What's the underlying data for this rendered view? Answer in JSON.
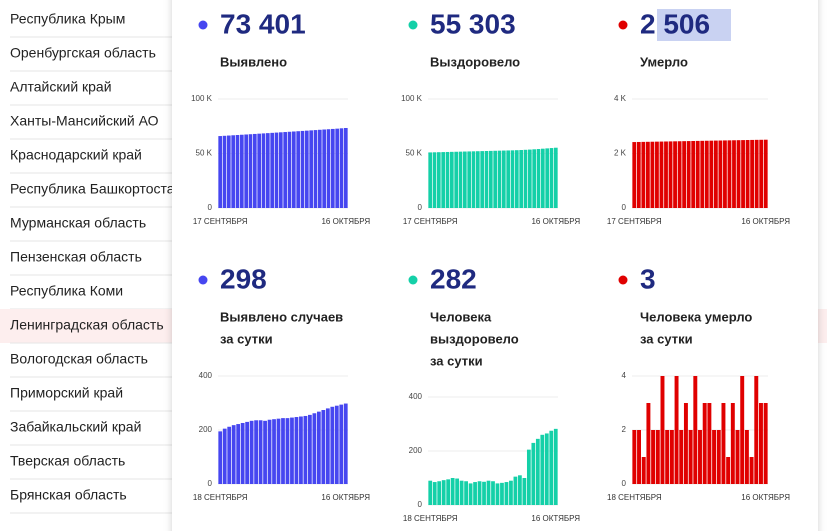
{
  "regions": [
    "Республика Крым",
    "Оренбургская область",
    "Алтайский край",
    "Ханты-Мансийский АО",
    "Краснодарский край",
    "Республика Башкортостан",
    "Мурманская область",
    "Пензенская область",
    "Республика Коми",
    "Ленинградская область",
    "Вологодская область",
    "Приморский край",
    "Забайкальский край",
    "Тверская область",
    "Брянская область"
  ],
  "chart_data": [
    {
      "type": "bar",
      "headline": "73 401",
      "label": [
        "Выявлено"
      ],
      "color": "#4646f0",
      "categories": [
        "17 СЕНТЯБРЯ",
        null,
        null,
        null,
        null,
        null,
        null,
        null,
        null,
        null,
        null,
        null,
        null,
        null,
        null,
        null,
        null,
        null,
        null,
        null,
        null,
        null,
        null,
        null,
        null,
        null,
        null,
        null,
        null,
        "16 ОКТЯБРЯ"
      ],
      "values": [
        66000,
        66240,
        66480,
        66720,
        66960,
        67200,
        67440,
        67690,
        67940,
        68190,
        68440,
        68690,
        68940,
        69190,
        69440,
        69690,
        69940,
        70190,
        70450,
        70710,
        70970,
        71230,
        71490,
        71750,
        72010,
        72270,
        72530,
        72790,
        73110,
        73401
      ],
      "ylim": [
        0,
        100000
      ],
      "yticks": [
        0,
        {
          "value": 50000,
          "label": "50 K"
        },
        {
          "value": 100000,
          "label": "100 K"
        }
      ]
    },
    {
      "type": "bar",
      "headline": "55 303",
      "label": [
        "Выздоровело"
      ],
      "color": "#14d0a8",
      "categories": [
        "17 СЕНТЯБРЯ",
        null,
        null,
        null,
        null,
        null,
        null,
        null,
        null,
        null,
        null,
        null,
        null,
        null,
        null,
        null,
        null,
        null,
        null,
        null,
        null,
        null,
        null,
        null,
        null,
        null,
        null,
        null,
        null,
        "16 ОКТЯБРЯ"
      ],
      "values": [
        51000,
        51100,
        51200,
        51300,
        51400,
        51500,
        51600,
        51700,
        51800,
        51900,
        52000,
        52100,
        52200,
        52300,
        52400,
        52500,
        52600,
        52700,
        52800,
        52900,
        53050,
        53200,
        53400,
        53600,
        53850,
        54100,
        54400,
        54700,
        55000,
        55303
      ],
      "ylim": [
        0,
        100000
      ],
      "yticks": [
        0,
        {
          "value": 50000,
          "label": "50 K"
        },
        {
          "value": 100000,
          "label": "100 K"
        }
      ]
    },
    {
      "type": "bar",
      "headline": "2 506",
      "label": [
        "Умерло"
      ],
      "color": "#e00000",
      "categories": [
        "17 СЕНТЯБРЯ",
        null,
        null,
        null,
        null,
        null,
        null,
        null,
        null,
        null,
        null,
        null,
        null,
        null,
        null,
        null,
        null,
        null,
        null,
        null,
        null,
        null,
        null,
        null,
        null,
        null,
        null,
        null,
        null,
        "16 ОКТЯБРЯ"
      ],
      "values": [
        2420,
        2423,
        2426,
        2429,
        2432,
        2435,
        2438,
        2441,
        2444,
        2447,
        2450,
        2453,
        2456,
        2459,
        2462,
        2465,
        2468,
        2471,
        2474,
        2477,
        2480,
        2483,
        2486,
        2489,
        2492,
        2495,
        2498,
        2501,
        2503,
        2506
      ],
      "ylim": [
        0,
        4000
      ],
      "yticks": [
        0,
        {
          "value": 2000,
          "label": "2 K"
        },
        {
          "value": 4000,
          "label": "4 K"
        }
      ]
    },
    {
      "type": "bar",
      "headline": "298",
      "label": [
        "Выявлено случаев",
        "за сутки"
      ],
      "color": "#4646f0",
      "categories": [
        "18 СЕНТЯБРЯ",
        null,
        null,
        null,
        null,
        null,
        null,
        null,
        null,
        null,
        null,
        null,
        null,
        null,
        null,
        null,
        null,
        null,
        null,
        null,
        null,
        null,
        null,
        null,
        null,
        null,
        null,
        null,
        "16 ОКТЯБРЯ"
      ],
      "values": [
        195,
        205,
        212,
        218,
        222,
        226,
        230,
        234,
        236,
        236,
        234,
        238,
        240,
        242,
        244,
        244,
        246,
        248,
        250,
        252,
        256,
        262,
        268,
        274,
        280,
        286,
        290,
        294,
        298
      ],
      "ylim": [
        0,
        400
      ],
      "yticks": [
        0,
        200,
        400
      ]
    },
    {
      "type": "bar",
      "headline": "282",
      "label": [
        "Человека",
        "выздоровело",
        "за сутки"
      ],
      "color": "#14d0a8",
      "categories": [
        "18 СЕНТЯБРЯ",
        null,
        null,
        null,
        null,
        null,
        null,
        null,
        null,
        null,
        null,
        null,
        null,
        null,
        null,
        null,
        null,
        null,
        null,
        null,
        null,
        null,
        null,
        null,
        null,
        null,
        null,
        null,
        "16 ОКТЯБРЯ"
      ],
      "values": [
        90,
        85,
        88,
        92,
        95,
        100,
        98,
        90,
        88,
        80,
        85,
        88,
        86,
        90,
        88,
        80,
        82,
        85,
        90,
        105,
        110,
        100,
        205,
        230,
        245,
        260,
        265,
        275,
        282
      ],
      "ylim": [
        0,
        400
      ],
      "yticks": [
        0,
        200,
        400
      ]
    },
    {
      "type": "bar",
      "headline": "3",
      "label": [
        "Человека умерло",
        "за сутки"
      ],
      "color": "#e00000",
      "categories": [
        "18 СЕНТЯБРЯ",
        null,
        null,
        null,
        null,
        null,
        null,
        null,
        null,
        null,
        null,
        null,
        null,
        null,
        null,
        null,
        null,
        null,
        null,
        null,
        null,
        null,
        null,
        null,
        null,
        null,
        null,
        null,
        "16 ОКТЯБРЯ"
      ],
      "values": [
        2,
        2,
        1,
        3,
        2,
        2,
        4,
        2,
        2,
        4,
        2,
        3,
        2,
        4,
        2,
        3,
        3,
        2,
        2,
        3,
        1,
        3,
        2,
        4,
        2,
        1,
        4,
        3,
        3
      ],
      "ylim": [
        0,
        4
      ],
      "yticks": [
        0,
        2,
        4
      ]
    }
  ]
}
